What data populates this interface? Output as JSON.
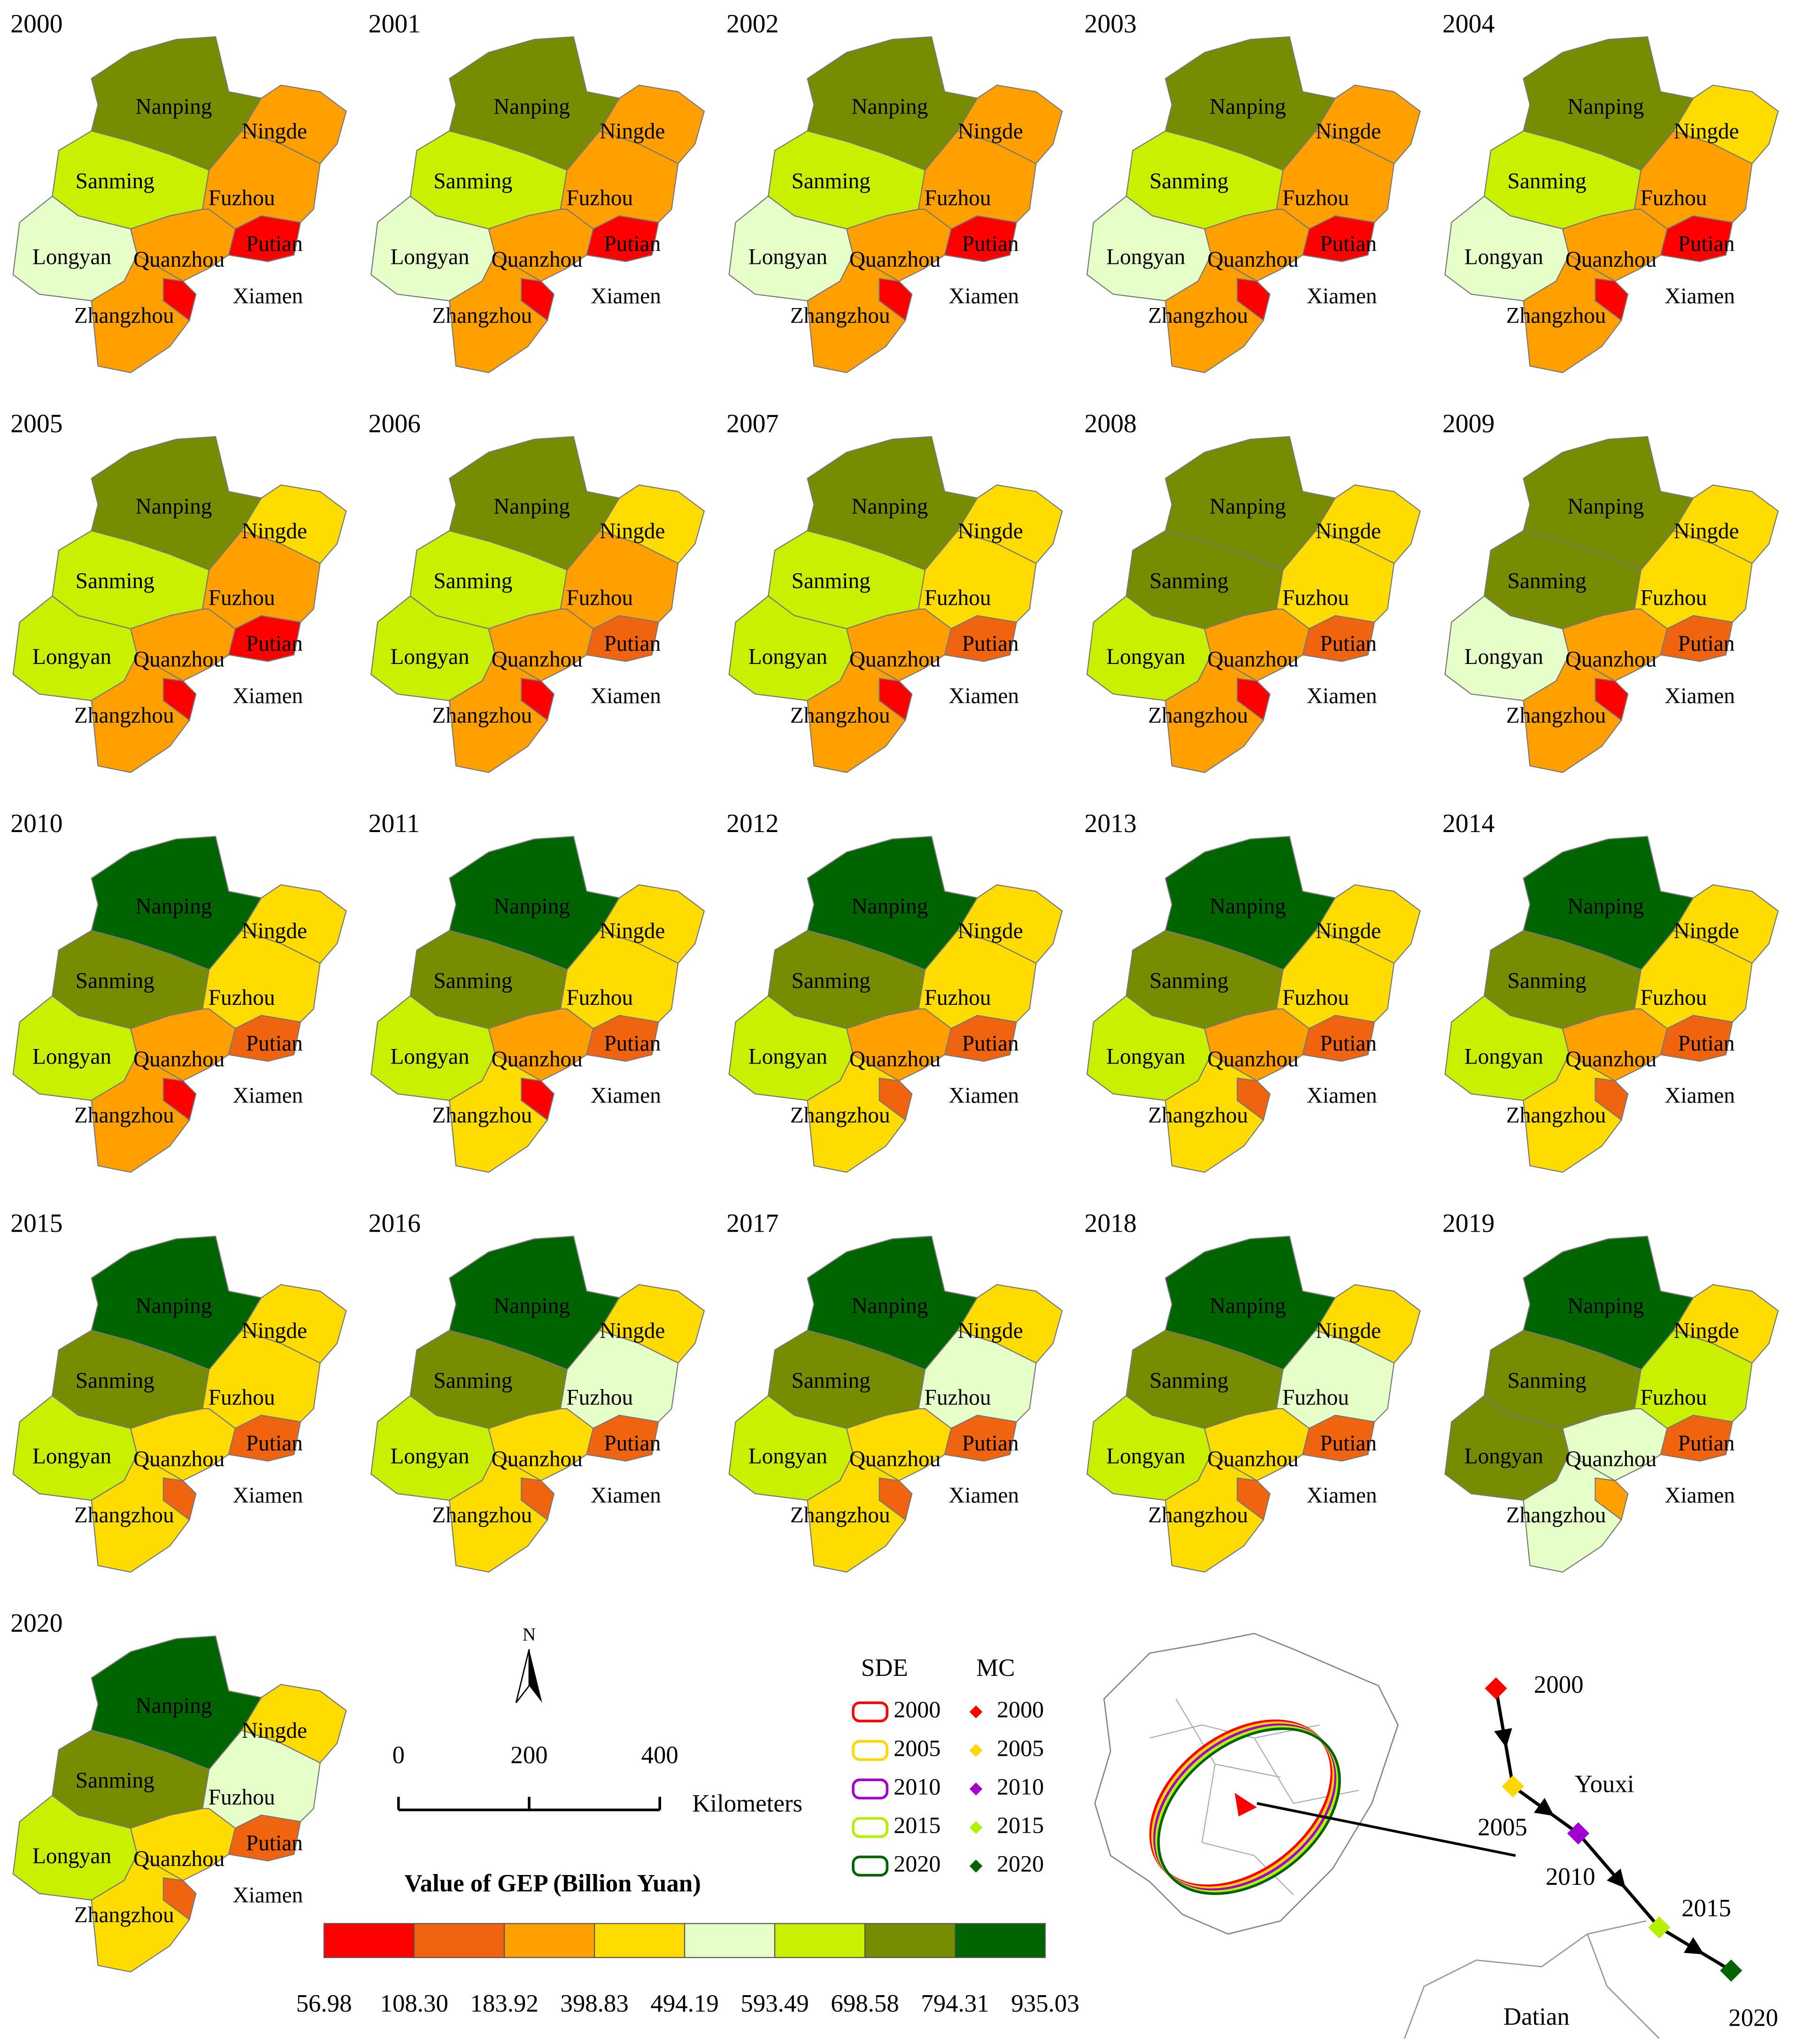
{
  "regions": [
    "Nanping",
    "Ningde",
    "Sanming",
    "Fuzhou",
    "Putian",
    "Longyan",
    "Quanzhou",
    "Zhangzhou",
    "Xiamen"
  ],
  "maps": [
    {
      "year": "2000",
      "fills": [
        "#788c00",
        "#ffa000",
        "#c8f000",
        "#ffa000",
        "#ff0000",
        "#e6ffc8",
        "#ffa000",
        "#ffa000",
        "#ff0000"
      ]
    },
    {
      "year": "2001",
      "fills": [
        "#788c00",
        "#ffa000",
        "#c8f000",
        "#ffa000",
        "#ff0000",
        "#e6ffc8",
        "#ffa000",
        "#ffa000",
        "#ff0000"
      ]
    },
    {
      "year": "2002",
      "fills": [
        "#788c00",
        "#ffa000",
        "#c8f000",
        "#ffa000",
        "#ff0000",
        "#e6ffc8",
        "#ffa000",
        "#ffa000",
        "#ff0000"
      ]
    },
    {
      "year": "2003",
      "fills": [
        "#788c00",
        "#ffa000",
        "#c8f000",
        "#ffa000",
        "#ff0000",
        "#e6ffc8",
        "#ffa000",
        "#ffa000",
        "#ff0000"
      ]
    },
    {
      "year": "2004",
      "fills": [
        "#788c00",
        "#ffdc00",
        "#c8f000",
        "#ffa000",
        "#ff0000",
        "#e6ffc8",
        "#ffa000",
        "#ffa000",
        "#ff0000"
      ]
    },
    {
      "year": "2005",
      "fills": [
        "#788c00",
        "#ffdc00",
        "#c8f000",
        "#ffa000",
        "#ff0000",
        "#c8f000",
        "#ffa000",
        "#ffa000",
        "#ff0000"
      ]
    },
    {
      "year": "2006",
      "fills": [
        "#788c00",
        "#ffdc00",
        "#c8f000",
        "#ffa000",
        "#f0640f",
        "#c8f000",
        "#ffa000",
        "#ffa000",
        "#ff0000"
      ]
    },
    {
      "year": "2007",
      "fills": [
        "#788c00",
        "#ffdc00",
        "#c8f000",
        "#ffdc00",
        "#f0640f",
        "#c8f000",
        "#ffa000",
        "#ffa000",
        "#ff0000"
      ]
    },
    {
      "year": "2008",
      "fills": [
        "#788c00",
        "#ffdc00",
        "#788c00",
        "#ffdc00",
        "#f0640f",
        "#c8f000",
        "#ffa000",
        "#ffa000",
        "#ff0000"
      ]
    },
    {
      "year": "2009",
      "fills": [
        "#788c00",
        "#ffdc00",
        "#788c00",
        "#ffdc00",
        "#f0640f",
        "#e6ffc8",
        "#ffa000",
        "#ffa000",
        "#ff0000"
      ]
    },
    {
      "year": "2010",
      "fills": [
        "#006400",
        "#ffdc00",
        "#788c00",
        "#ffdc00",
        "#f0640f",
        "#c8f000",
        "#ffa000",
        "#ffa000",
        "#ff0000"
      ]
    },
    {
      "year": "2011",
      "fills": [
        "#006400",
        "#ffdc00",
        "#788c00",
        "#ffdc00",
        "#f0640f",
        "#c8f000",
        "#ffa000",
        "#ffdc00",
        "#ff0000"
      ]
    },
    {
      "year": "2012",
      "fills": [
        "#006400",
        "#ffdc00",
        "#788c00",
        "#ffdc00",
        "#f0640f",
        "#c8f000",
        "#ffa000",
        "#ffdc00",
        "#f0640f"
      ]
    },
    {
      "year": "2013",
      "fills": [
        "#006400",
        "#ffdc00",
        "#788c00",
        "#ffdc00",
        "#f0640f",
        "#c8f000",
        "#ffa000",
        "#ffdc00",
        "#f0640f"
      ]
    },
    {
      "year": "2014",
      "fills": [
        "#006400",
        "#ffdc00",
        "#788c00",
        "#ffdc00",
        "#f0640f",
        "#c8f000",
        "#ffa000",
        "#ffdc00",
        "#f0640f"
      ]
    },
    {
      "year": "2015",
      "fills": [
        "#006400",
        "#ffdc00",
        "#788c00",
        "#ffdc00",
        "#f0640f",
        "#c8f000",
        "#ffdc00",
        "#ffdc00",
        "#f0640f"
      ]
    },
    {
      "year": "2016",
      "fills": [
        "#006400",
        "#ffdc00",
        "#788c00",
        "#e6ffc8",
        "#f0640f",
        "#c8f000",
        "#ffdc00",
        "#ffdc00",
        "#f0640f"
      ]
    },
    {
      "year": "2017",
      "fills": [
        "#006400",
        "#ffdc00",
        "#788c00",
        "#e6ffc8",
        "#f0640f",
        "#c8f000",
        "#ffdc00",
        "#ffdc00",
        "#f0640f"
      ]
    },
    {
      "year": "2018",
      "fills": [
        "#006400",
        "#ffdc00",
        "#788c00",
        "#e6ffc8",
        "#f0640f",
        "#c8f000",
        "#ffdc00",
        "#ffdc00",
        "#f0640f"
      ]
    },
    {
      "year": "2019",
      "fills": [
        "#006400",
        "#ffdc00",
        "#788c00",
        "#c8f000",
        "#f0640f",
        "#788c00",
        "#e6ffc8",
        "#e6ffc8",
        "#ffa000"
      ]
    },
    {
      "year": "2020",
      "fills": [
        "#006400",
        "#ffdc00",
        "#788c00",
        "#e6ffc8",
        "#f0640f",
        "#c8f000",
        "#ffdc00",
        "#ffdc00",
        "#f0640f"
      ]
    }
  ],
  "legend": {
    "title": "Value of GEP (Billion Yuan)",
    "breaks": [
      56.98,
      {
        "value": 108.3,
        "label": "108.30"
      },
      183.92,
      398.83,
      494.19,
      593.49,
      698.58,
      794.31,
      935.03
    ],
    "colors": [
      "#ff0000",
      "#f0640f",
      "#ffa000",
      "#ffdc00",
      "#e6ffc8",
      "#c8f000",
      "#788c00",
      "#006400"
    ]
  },
  "north": "N",
  "scale_bar": {
    "ticks": [
      0,
      200,
      400
    ],
    "unit": "Kilometers"
  },
  "sde_legend": {
    "sde_title": "SDE",
    "mc_title": "MC",
    "years": [
      "2000",
      "2005",
      "2010",
      "2015",
      "2020"
    ],
    "colors": [
      "#ff0000",
      "#ffd700",
      "#a000d0",
      "#b4f000",
      "#006400"
    ]
  },
  "trajectory": {
    "labels": [
      "2000",
      "2005",
      "2010",
      "2015",
      "2020"
    ],
    "places": [
      "Youxi",
      "Datian"
    ]
  }
}
